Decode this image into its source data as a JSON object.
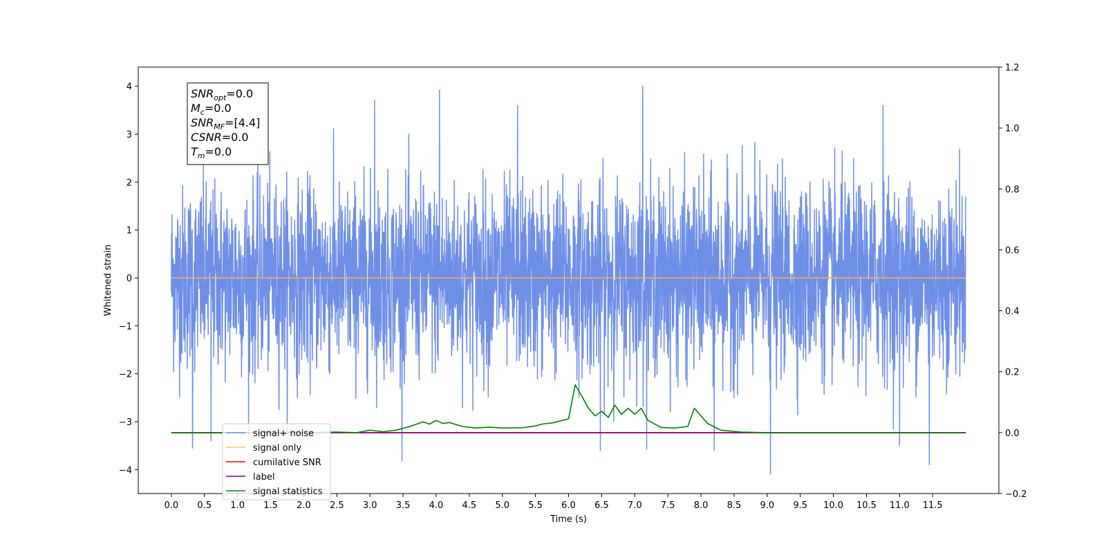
{
  "chart_data": {
    "type": "line",
    "title": "",
    "xlabel": "Time (s)",
    "ylabel": "Whitened strain",
    "xlim": [
      -0.5,
      12.5
    ],
    "ylim": [
      -4.5,
      4.4
    ],
    "y2lim": [
      -0.2,
      1.2
    ],
    "x_ticks": [
      0.0,
      0.5,
      1.0,
      1.5,
      2.0,
      2.5,
      3.0,
      3.5,
      4.0,
      4.5,
      5.0,
      5.5,
      6.0,
      6.5,
      7.0,
      7.5,
      8.0,
      8.5,
      9.0,
      9.5,
      10.0,
      10.5,
      11.0,
      11.5
    ],
    "x_tick_labels": [
      "0.0",
      "0.5",
      "1.0",
      "1.5",
      "2.0",
      "2.5",
      "3.0",
      "3.5",
      "4.0",
      "4.5",
      "5.0",
      "5.5",
      "6.0",
      "6.5",
      "7.0",
      "7.5",
      "8.0",
      "8.5",
      "9.0",
      "9.5",
      "10.0",
      "10.5",
      "11.0",
      "11.5"
    ],
    "y_ticks": [
      -4,
      -3,
      -2,
      -1,
      0,
      1,
      2,
      3,
      4
    ],
    "y_tick_labels": [
      "−4",
      "−3",
      "−2",
      "−1",
      "0",
      "1",
      "2",
      "3",
      "4"
    ],
    "y2_ticks": [
      -0.2,
      0.0,
      0.2,
      0.4,
      0.6,
      0.8,
      1.0,
      1.2
    ],
    "y2_tick_labels": [
      "−0.2",
      "0.0",
      "0.2",
      "0.4",
      "0.6",
      "0.8",
      "1.0",
      "1.2"
    ],
    "grid": false,
    "legend_position": "lower-left",
    "series": [
      {
        "name": "signal+ noise",
        "axis": "left",
        "color": "#6f8fe6",
        "description_samples": {
          "x_start": 0.0,
          "x_end": 12.0,
          "amplitude_sd": 0.95,
          "envelope_max": 4.0,
          "envelope_min": -4.1
        },
        "spikes": [
          {
            "x": 0.32,
            "y": -3.55
          },
          {
            "x": 0.6,
            "y": -3.4
          },
          {
            "x": 3.07,
            "y": 3.7
          },
          {
            "x": 4.05,
            "y": 3.92
          },
          {
            "x": 5.23,
            "y": 3.6
          },
          {
            "x": 6.48,
            "y": -3.6
          },
          {
            "x": 7.12,
            "y": 4.02
          },
          {
            "x": 8.2,
            "y": -3.6
          },
          {
            "x": 9.05,
            "y": -4.12
          },
          {
            "x": 10.75,
            "y": 3.6
          },
          {
            "x": 11.45,
            "y": -3.9
          },
          {
            "x": 11.0,
            "y": -3.5
          }
        ]
      },
      {
        "name": "signal only",
        "axis": "left",
        "color": "#ffb14e",
        "x": [
          0.0,
          12.0
        ],
        "y": [
          0.0,
          0.0
        ]
      },
      {
        "name": "cumilative SNR",
        "axis": "right",
        "color": "#ff0000",
        "x": [
          0.0,
          12.0
        ],
        "y": [
          0.0,
          0.0
        ]
      },
      {
        "name": "label",
        "axis": "right",
        "color": "#800080",
        "x": [
          0.0,
          12.0
        ],
        "y": [
          0.0,
          0.0
        ]
      },
      {
        "name": "signal statistics",
        "axis": "right",
        "color": "#008000",
        "x": [
          0.0,
          2.0,
          2.5,
          2.8,
          3.0,
          3.2,
          3.4,
          3.5,
          3.6,
          3.8,
          3.9,
          4.0,
          4.1,
          4.2,
          4.4,
          4.6,
          4.8,
          5.0,
          5.3,
          5.5,
          5.6,
          5.75,
          6.0,
          6.1,
          6.2,
          6.3,
          6.4,
          6.5,
          6.6,
          6.7,
          6.8,
          6.9,
          7.0,
          7.1,
          7.2,
          7.4,
          7.6,
          7.8,
          7.9,
          8.1,
          8.3,
          8.6,
          9.0,
          10.0,
          11.0,
          11.95
        ],
        "y": [
          0.0,
          0.0,
          0.002,
          0.0,
          0.008,
          0.003,
          0.008,
          0.014,
          0.02,
          0.035,
          0.028,
          0.04,
          0.03,
          0.033,
          0.02,
          0.015,
          0.018,
          0.015,
          0.016,
          0.022,
          0.028,
          0.032,
          0.045,
          0.157,
          0.12,
          0.08,
          0.055,
          0.07,
          0.05,
          0.09,
          0.06,
          0.08,
          0.06,
          0.08,
          0.04,
          0.017,
          0.015,
          0.02,
          0.08,
          0.03,
          0.008,
          0.002,
          0.0,
          0.0,
          0.0,
          0.0
        ]
      }
    ],
    "legend": [
      {
        "label": "signal+ noise",
        "color": "#6f8fe6"
      },
      {
        "label": "signal only",
        "color": "#ffc56b"
      },
      {
        "label": "cumilative SNR",
        "color": "#ff0000"
      },
      {
        "label": "label",
        "color": "#800080"
      },
      {
        "label": "signal statistics",
        "color": "#008000"
      }
    ],
    "annotation_lines": [
      {
        "base": "SNR",
        "sub": "opt",
        "value": "=0.0"
      },
      {
        "base": "M",
        "sub": "c",
        "value": "=0.0"
      },
      {
        "base": "SNR",
        "sub": "MF",
        "value": "=[4.4]"
      },
      {
        "base": "CSNR",
        "sub": "",
        "value": "=0.0"
      },
      {
        "base": "T",
        "sub": "m",
        "value": "=0.0"
      }
    ]
  }
}
